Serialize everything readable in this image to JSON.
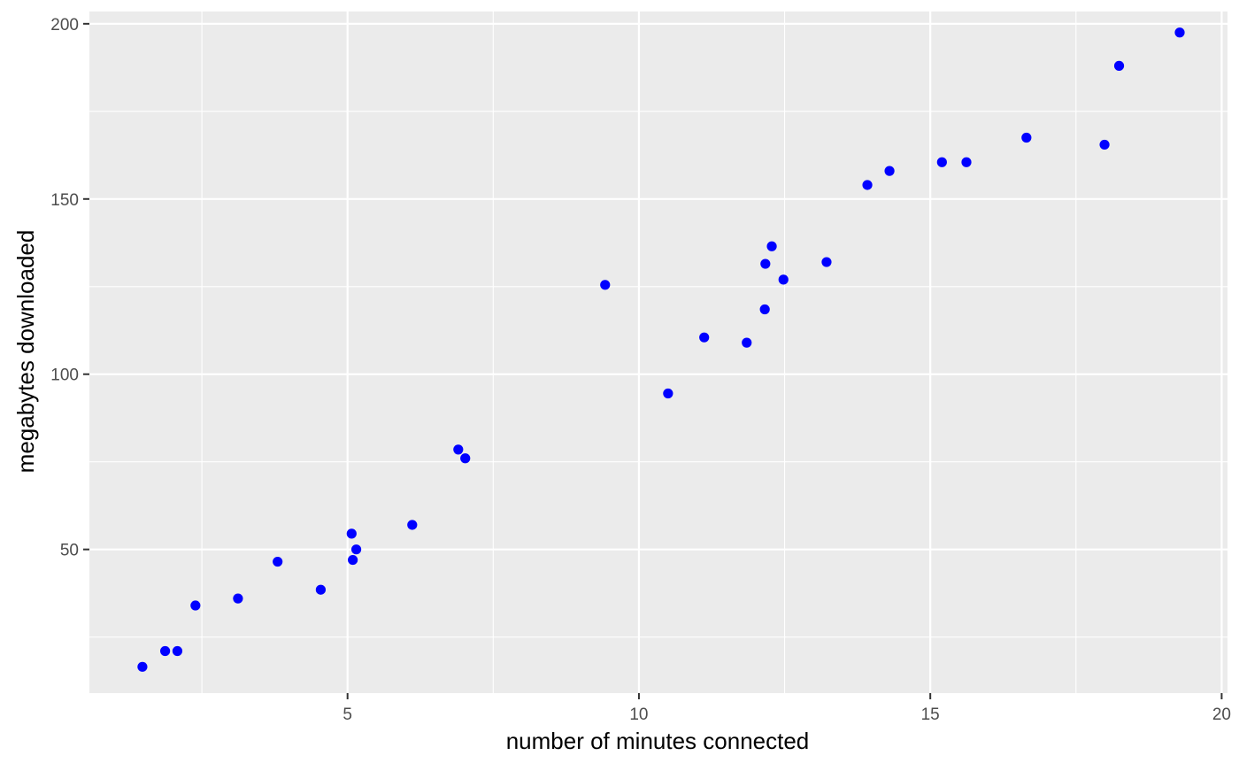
{
  "chart_data": {
    "type": "scatter",
    "title": "",
    "xlabel": "number of minutes connected",
    "ylabel": "megabytes downloaded",
    "xlim": [
      0.57,
      20.1
    ],
    "ylim": [
      9.0,
      203.5
    ],
    "x_ticks": [
      5,
      10,
      15,
      20
    ],
    "x_tick_labels": [
      "5",
      "10",
      "15",
      "20"
    ],
    "y_ticks": [
      50,
      100,
      150,
      200
    ],
    "y_tick_labels": [
      "50",
      "100",
      "150",
      "200"
    ],
    "grid": true,
    "legend": "none",
    "background_color": "#EBEBEB",
    "grid_color": "#FFFFFF",
    "point_color": "#0000FF",
    "points": [
      {
        "x": 1.48,
        "y": 16.5
      },
      {
        "x": 1.87,
        "y": 21.0
      },
      {
        "x": 2.08,
        "y": 21.0
      },
      {
        "x": 2.39,
        "y": 34.0
      },
      {
        "x": 3.12,
        "y": 36.0
      },
      {
        "x": 3.8,
        "y": 46.5
      },
      {
        "x": 4.54,
        "y": 38.5
      },
      {
        "x": 5.07,
        "y": 54.5
      },
      {
        "x": 5.09,
        "y": 47.0
      },
      {
        "x": 5.15,
        "y": 50.0
      },
      {
        "x": 6.11,
        "y": 57.0
      },
      {
        "x": 6.9,
        "y": 78.5
      },
      {
        "x": 7.02,
        "y": 76.0
      },
      {
        "x": 9.42,
        "y": 125.5
      },
      {
        "x": 10.5,
        "y": 94.5
      },
      {
        "x": 11.12,
        "y": 110.5
      },
      {
        "x": 11.85,
        "y": 109.0
      },
      {
        "x": 12.16,
        "y": 118.5
      },
      {
        "x": 12.17,
        "y": 131.5
      },
      {
        "x": 12.28,
        "y": 136.5
      },
      {
        "x": 12.48,
        "y": 127.0
      },
      {
        "x": 13.22,
        "y": 132.0
      },
      {
        "x": 13.92,
        "y": 154.0
      },
      {
        "x": 14.3,
        "y": 158.0
      },
      {
        "x": 15.2,
        "y": 160.5
      },
      {
        "x": 15.62,
        "y": 160.5
      },
      {
        "x": 16.65,
        "y": 167.5
      },
      {
        "x": 17.99,
        "y": 165.5
      },
      {
        "x": 18.24,
        "y": 188.0
      },
      {
        "x": 19.28,
        "y": 197.5
      }
    ]
  }
}
